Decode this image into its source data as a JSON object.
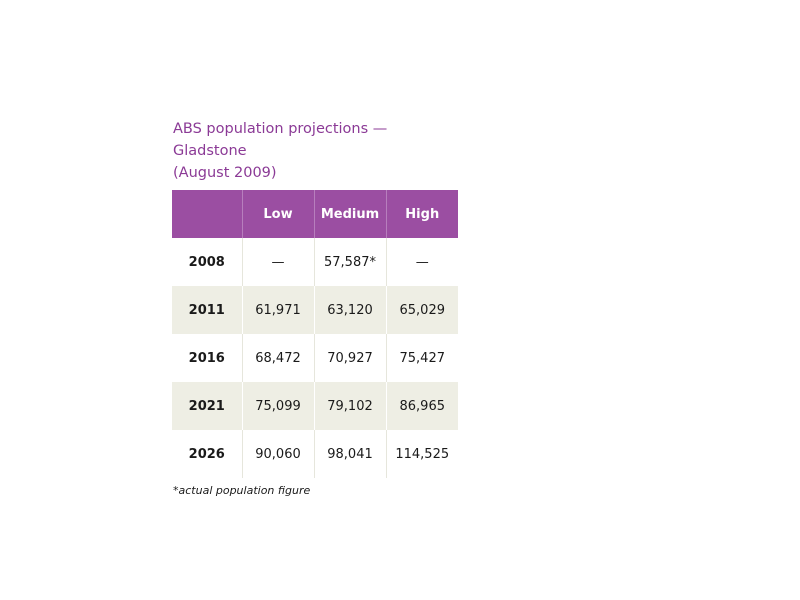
{
  "title_line1": "ABS population projections — Gladstone",
  "title_line2": "(August 2009)",
  "table": {
    "headers": [
      "",
      "Low",
      "Medium",
      "High"
    ],
    "rows": [
      {
        "year": "2008",
        "low": "—",
        "medium": "57,587*",
        "high": "—"
      },
      {
        "year": "2011",
        "low": "61,971",
        "medium": "63,120",
        "high": "65,029"
      },
      {
        "year": "2016",
        "low": "68,472",
        "medium": "70,927",
        "high": "75,427"
      },
      {
        "year": "2021",
        "low": "75,099",
        "medium": "79,102",
        "high": "86,965"
      },
      {
        "year": "2026",
        "low": "90,060",
        "medium": "98,041",
        "high": "114,525"
      }
    ]
  },
  "footnote": "*actual population figure",
  "colors": {
    "header_bg": "#9b4ea2",
    "title": "#8b3a96",
    "shaded_row": "#eeeee4"
  }
}
